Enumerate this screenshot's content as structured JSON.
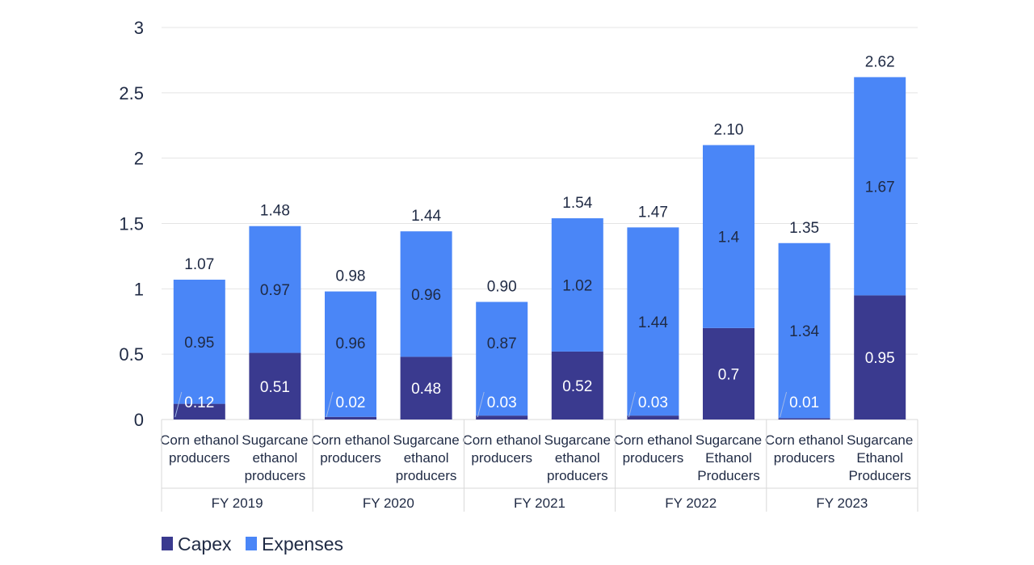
{
  "chart_data": {
    "type": "bar",
    "stacked": true,
    "title": "",
    "xlabel": "",
    "ylabel": "",
    "ylim": [
      0,
      3
    ],
    "yticks": [
      0,
      0.5,
      1,
      1.5,
      2,
      2.5,
      3
    ],
    "ytick_labels": [
      "0",
      "0.5",
      "1",
      "1.5",
      "2",
      "2.5",
      "3"
    ],
    "grid": true,
    "legend_position": "bottom-left",
    "groups": [
      {
        "label": "FY 2019",
        "categories": [
          [
            "Corn ethanol",
            "producers"
          ],
          [
            "Sugarcane",
            "ethanol",
            "producers"
          ]
        ]
      },
      {
        "label": "FY 2020",
        "categories": [
          [
            "Corn ethanol",
            "producers"
          ],
          [
            "Sugarcane",
            "ethanol",
            "producers"
          ]
        ]
      },
      {
        "label": "FY 2021",
        "categories": [
          [
            "Corn ethanol",
            "producers"
          ],
          [
            "Sugarcane",
            "ethanol",
            "producers"
          ]
        ]
      },
      {
        "label": "FY 2022",
        "categories": [
          [
            "Corn ethanol",
            "producers"
          ],
          [
            "Sugarcane",
            "Ethanol",
            "Producers"
          ]
        ]
      },
      {
        "label": "FY 2023",
        "categories": [
          [
            "Corn ethanol",
            "producers"
          ],
          [
            "Sugarcane",
            "Ethanol",
            "Producers"
          ]
        ]
      }
    ],
    "series": [
      {
        "name": "Capex",
        "color": "#3a3a8f",
        "values": [
          0.12,
          0.51,
          0.02,
          0.48,
          0.03,
          0.52,
          0.03,
          0.7,
          0.01,
          0.95
        ],
        "labels": [
          "0.12",
          "0.51",
          "0.02",
          "0.48",
          "0.03",
          "0.52",
          "0.03",
          "0.7",
          "0.01",
          "0.95"
        ]
      },
      {
        "name": "Expenses",
        "color": "#4a86f7",
        "values": [
          0.95,
          0.97,
          0.96,
          0.96,
          0.87,
          1.02,
          1.44,
          1.4,
          1.34,
          1.67
        ],
        "labels": [
          "0.95",
          "0.97",
          "0.96",
          "0.96",
          "0.87",
          "1.02",
          "1.44",
          "1.4",
          "1.34",
          "1.67"
        ]
      }
    ],
    "totals": [
      "1.07",
      "1.48",
      "0.98",
      "1.44",
      "0.90",
      "1.54",
      "1.47",
      "2.10",
      "1.35",
      "2.62"
    ]
  }
}
